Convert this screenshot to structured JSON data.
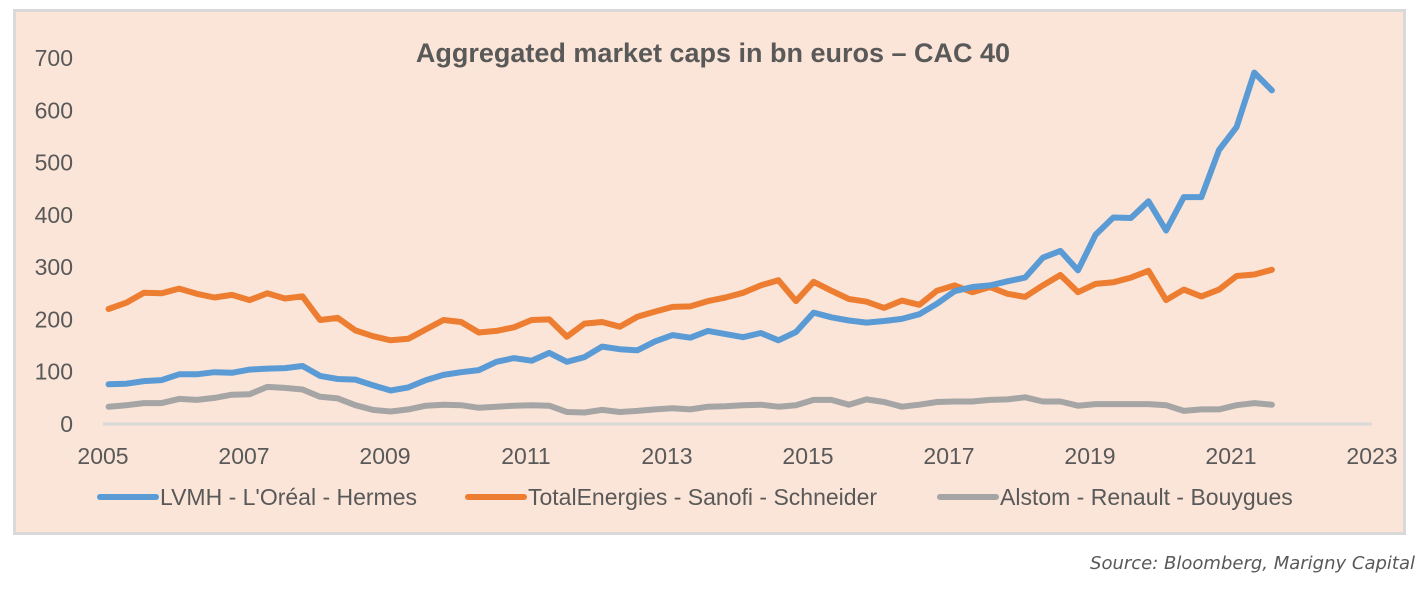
{
  "chart_data": {
    "type": "line",
    "title": "Aggregated market caps in bn euros – CAC 40",
    "xlabel": "",
    "ylabel": "",
    "xlim": [
      2005,
      2023
    ],
    "ylim": [
      0,
      700
    ],
    "x_ticks": [
      "2005",
      "2007",
      "2009",
      "2011",
      "2013",
      "2015",
      "2017",
      "2019",
      "2021",
      "2023"
    ],
    "y_ticks": [
      "0",
      "100",
      "200",
      "300",
      "400",
      "500",
      "600",
      "700"
    ],
    "grid": false,
    "legend_position": "bottom",
    "x": [
      2005.08,
      2005.33,
      2005.58,
      2005.83,
      2006.08,
      2006.33,
      2006.58,
      2006.83,
      2007.08,
      2007.33,
      2007.58,
      2007.83,
      2008.08,
      2008.33,
      2008.58,
      2008.83,
      2009.08,
      2009.33,
      2009.58,
      2009.83,
      2010.08,
      2010.33,
      2010.58,
      2010.83,
      2011.08,
      2011.33,
      2011.58,
      2011.83,
      2012.08,
      2012.33,
      2012.58,
      2012.83,
      2013.08,
      2013.33,
      2013.58,
      2013.83,
      2014.08,
      2014.33,
      2014.58,
      2014.83,
      2015.08,
      2015.33,
      2015.58,
      2015.83,
      2016.08,
      2016.33,
      2016.58,
      2016.83,
      2017.08,
      2017.33,
      2017.58,
      2017.83,
      2018.08,
      2018.33,
      2018.58,
      2018.83,
      2019.08,
      2019.33,
      2019.58,
      2019.83,
      2020.08,
      2020.33,
      2020.58,
      2020.83,
      2021.08,
      2021.33,
      2021.58
    ],
    "series": [
      {
        "name": "LVMH - L'Oréal - Hermes",
        "color": "#5b9bd5",
        "values": [
          76,
          77,
          82,
          84,
          95,
          95,
          99,
          98,
          104,
          106,
          107,
          111,
          92,
          86,
          85,
          74,
          64,
          70,
          84,
          94,
          99,
          103,
          119,
          126,
          121,
          136,
          119,
          128,
          148,
          143,
          141,
          158,
          170,
          165,
          178,
          172,
          166,
          174,
          160,
          176,
          213,
          204,
          198,
          194,
          197,
          201,
          210,
          230,
          254,
          262,
          265,
          273,
          280,
          318,
          331,
          294,
          362,
          395,
          394,
          426,
          370,
          434,
          434,
          524,
          568,
          672,
          638
        ]
      },
      {
        "name": "TotalEnergies - Sanofi - Schneider",
        "color": "#ed7d31",
        "values": [
          220,
          232,
          251,
          250,
          259,
          249,
          242,
          247,
          237,
          250,
          240,
          244,
          199,
          203,
          179,
          168,
          160,
          163,
          181,
          199,
          195,
          175,
          178,
          185,
          199,
          200,
          167,
          192,
          195,
          186,
          205,
          215,
          224,
          225,
          235,
          242,
          251,
          265,
          275,
          235,
          272,
          255,
          239,
          234,
          222,
          236,
          228,
          255,
          265,
          252,
          262,
          249,
          243,
          265,
          285,
          252,
          268,
          271,
          280,
          293,
          237,
          257,
          244,
          257,
          283,
          286,
          295
        ]
      },
      {
        "name": "Alstom - Renault - Bouygues",
        "color": "#a5a5a5",
        "values": [
          33,
          36,
          40,
          40,
          48,
          46,
          50,
          56,
          57,
          71,
          69,
          66,
          52,
          49,
          36,
          27,
          24,
          28,
          35,
          37,
          36,
          31,
          33,
          35,
          36,
          35,
          23,
          22,
          27,
          23,
          25,
          28,
          30,
          28,
          33,
          34,
          36,
          37,
          33,
          36,
          46,
          46,
          37,
          47,
          42,
          33,
          37,
          42,
          43,
          43,
          46,
          47,
          51,
          43,
          43,
          35,
          38,
          38,
          38,
          38,
          36,
          25,
          28,
          28,
          36,
          40,
          37
        ]
      }
    ]
  },
  "source": "Source: Bloomberg, Marigny Capital"
}
